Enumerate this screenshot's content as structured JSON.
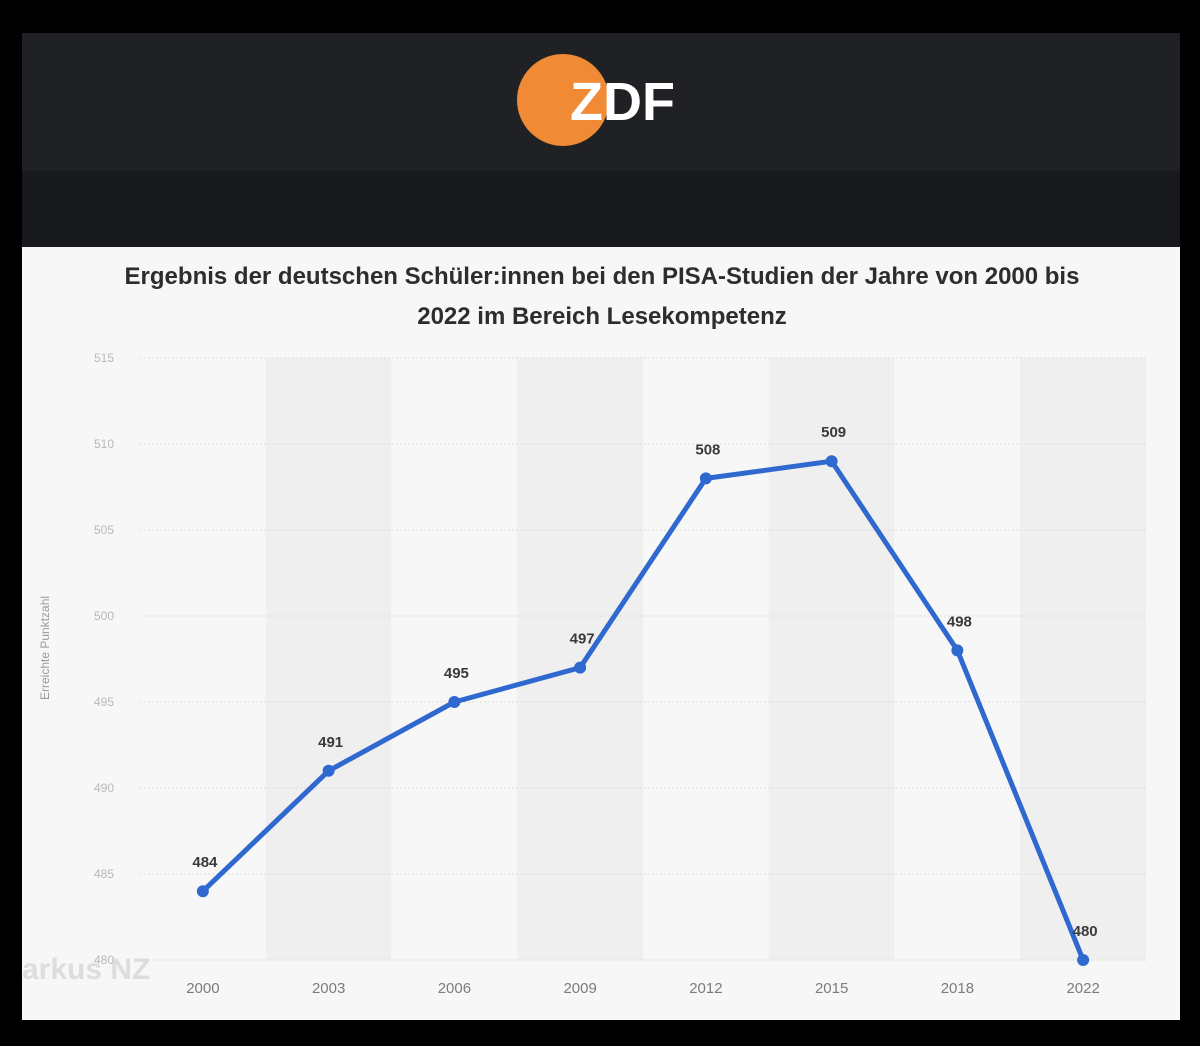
{
  "brand": {
    "logo_text": "ZDF",
    "accent": "#f08a35"
  },
  "watermark": "arkus NZ",
  "chart_data": {
    "type": "line",
    "title": "Ergebnis der deutschen Schüler:innen bei den PISA-Studien der Jahre von 2000 bis 2022 im Bereich Lesekompetenz",
    "xlabel": "",
    "ylabel": "Erreichte Punktzahl",
    "categories": [
      "2000",
      "2003",
      "2006",
      "2009",
      "2012",
      "2015",
      "2018",
      "2022"
    ],
    "values": [
      484,
      491,
      495,
      497,
      508,
      509,
      498,
      480
    ],
    "ylim": [
      480,
      515
    ],
    "yticks": [
      480,
      485,
      490,
      495,
      500,
      505,
      510,
      515
    ],
    "line_color": "#2f69d0",
    "grid": true,
    "legend": "none"
  }
}
